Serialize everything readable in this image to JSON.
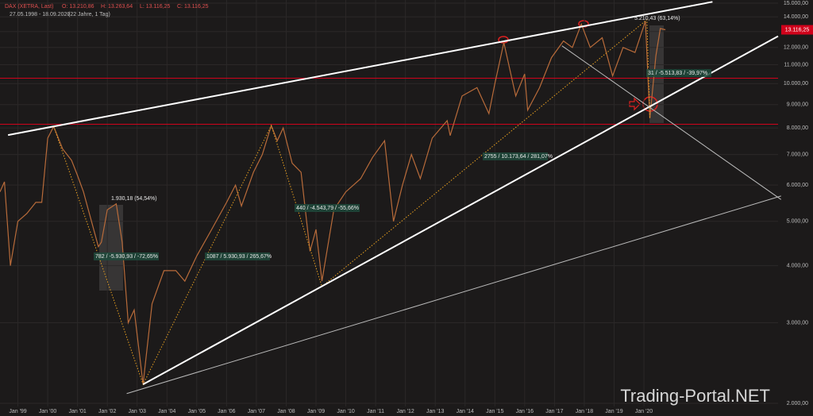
{
  "chart_data": {
    "type": "line",
    "symbol": "DAX (XETRA, Last)",
    "ohlc": [
      "O: 13.210,86",
      "H: 13.263,64",
      "L: 13.116,25",
      "C: 13.116,25"
    ],
    "range_text": "27.05.1998 - 18.09.2020",
    "span_text": "(22 Jahre, 1 Tag)",
    "watermark": "Trading-Portal.NET",
    "log_scale": true,
    "grid": true,
    "xlim": [
      1998.4,
      2024.5
    ],
    "ylim": [
      1968,
      15240
    ],
    "xticks": [
      {
        "value": 1999,
        "label": "Jan '99"
      },
      {
        "value": 2000,
        "label": "Jan '00"
      },
      {
        "value": 2001,
        "label": "Jan '01"
      },
      {
        "value": 2002,
        "label": "Jan '02"
      },
      {
        "value": 2003,
        "label": "Jan '03"
      },
      {
        "value": 2004,
        "label": "Jan '04"
      },
      {
        "value": 2005,
        "label": "Jan '05"
      },
      {
        "value": 2006,
        "label": "Jan '06"
      },
      {
        "value": 2007,
        "label": "Jan '07"
      },
      {
        "value": 2008,
        "label": "Jan '08"
      },
      {
        "value": 2009,
        "label": "Jan '09"
      },
      {
        "value": 2010,
        "label": "Jan '10"
      },
      {
        "value": 2011,
        "label": "Jan '11"
      },
      {
        "value": 2012,
        "label": "Jan '12"
      },
      {
        "value": 2013,
        "label": "Jan '13"
      },
      {
        "value": 2014,
        "label": "Jan '14"
      },
      {
        "value": 2015,
        "label": "Jan '15"
      },
      {
        "value": 2016,
        "label": "Jan '16"
      },
      {
        "value": 2017,
        "label": "Jan '17"
      },
      {
        "value": 2018,
        "label": "Jan '18"
      },
      {
        "value": 2019,
        "label": "Jan '19"
      },
      {
        "value": 2020,
        "label": "Jan '20"
      }
    ],
    "yticks": [
      {
        "value": 2000,
        "label": "2.000,00"
      },
      {
        "value": 3000,
        "label": "3.000,00"
      },
      {
        "value": 4000,
        "label": "4.000,00"
      },
      {
        "value": 5000,
        "label": "5.000,00"
      },
      {
        "value": 6000,
        "label": "6.000,00"
      },
      {
        "value": 7000,
        "label": "7.000,00"
      },
      {
        "value": 8000,
        "label": "8.000,00"
      },
      {
        "value": 9000,
        "label": "9.000,00"
      },
      {
        "value": 10000,
        "label": "10.000,00"
      },
      {
        "value": 11000,
        "label": "11.000,00"
      },
      {
        "value": 12000,
        "label": "12.000,00"
      },
      {
        "value": 13000,
        "label": "13.000,00"
      },
      {
        "value": 14000,
        "label": "14.000,00"
      },
      {
        "value": 15000,
        "label": "15.000,00"
      }
    ],
    "series": [
      {
        "name": "DAX",
        "color": "#b86b3a",
        "x": [
          1998.4,
          1998.55,
          1998.75,
          1999.0,
          1999.3,
          1999.6,
          1999.8,
          2000.0,
          2000.2,
          2000.5,
          2000.8,
          2001.0,
          2001.2,
          2001.7,
          2001.8,
          2002.0,
          2002.3,
          2002.5,
          2002.7,
          2002.9,
          2003.2,
          2003.5,
          2003.9,
          2004.3,
          2004.6,
          2005.0,
          2005.5,
          2006.0,
          2006.3,
          2006.5,
          2006.9,
          2007.2,
          2007.5,
          2007.7,
          2007.9,
          2008.2,
          2008.5,
          2008.8,
          2009.0,
          2009.2,
          2009.6,
          2010.0,
          2010.5,
          2010.9,
          2011.3,
          2011.6,
          2011.9,
          2012.2,
          2012.5,
          2012.9,
          2013.4,
          2013.5,
          2013.9,
          2014.4,
          2014.8,
          2015.0,
          2015.3,
          2015.7,
          2016.0,
          2016.1,
          2016.5,
          2016.9,
          2017.3,
          2017.6,
          2017.9,
          2018.2,
          2018.6,
          2018.95,
          2019.3,
          2019.7,
          2020.05,
          2020.2,
          2020.4,
          2020.55,
          2020.72
        ],
        "values": [
          5800,
          6100,
          4000,
          5000,
          5200,
          5500,
          5500,
          7600,
          8060,
          7200,
          6800,
          6300,
          5800,
          4400,
          4500,
          5300,
          5460,
          4500,
          3000,
          3200,
          2200,
          3300,
          3900,
          3900,
          3700,
          4200,
          4800,
          5500,
          6000,
          5400,
          6400,
          7000,
          8100,
          7500,
          8000,
          6700,
          6400,
          4300,
          4800,
          3700,
          5300,
          5800,
          6200,
          6900,
          7500,
          5000,
          6000,
          7000,
          6200,
          7600,
          8300,
          7700,
          9400,
          9800,
          8600,
          10000,
          12300,
          9400,
          10500,
          8750,
          9800,
          11400,
          12400,
          12000,
          13500,
          12000,
          12600,
          10400,
          12000,
          11700,
          13700,
          8400,
          11500,
          13200,
          13116
        ]
      }
    ],
    "last_price": {
      "value": 13116.25,
      "label": "13.116,25"
    },
    "hlines": [
      {
        "value": 10280,
        "color": "#d0021b"
      },
      {
        "value": 8150,
        "color": "#d0021b"
      }
    ],
    "trendlines": [
      {
        "x": [
          1998.67,
          2022.3
        ],
        "y": [
          7720,
          15100
        ],
        "color": "#ffffff",
        "width": 2
      },
      {
        "x": [
          2003.2,
          2024.5
        ],
        "y": [
          2200,
          12700
        ],
        "color": "#ffffff",
        "width": 2
      },
      {
        "x": [
          2002.65,
          2024.6
        ],
        "y": [
          2100,
          5680
        ],
        "color": "#bbbbbb",
        "width": 1
      },
      {
        "x": [
          2017.25,
          2024.6
        ],
        "y": [
          12100,
          5580
        ],
        "color": "#bbbbbb",
        "width": 1
      }
    ],
    "swings": {
      "color": "#e8a020",
      "x": [
        2000.2,
        2003.2,
        2007.5,
        2009.2,
        2020.1,
        2020.2
      ],
      "y": [
        8060,
        2200,
        8100,
        3600,
        13800,
        8400
      ]
    },
    "annotations": [
      "1.930,18 (54,54%)",
      "782 / -5.930,93 / -72,65%",
      "1087 / 5.930,93 / 265,67%",
      "440 / -4.543,79 / -55,66%",
      "2755 / 10.173,64 / 281,07%",
      "5.210,43 (63,14%)",
      "31 / -5.513,83 / -39,97%"
    ]
  }
}
